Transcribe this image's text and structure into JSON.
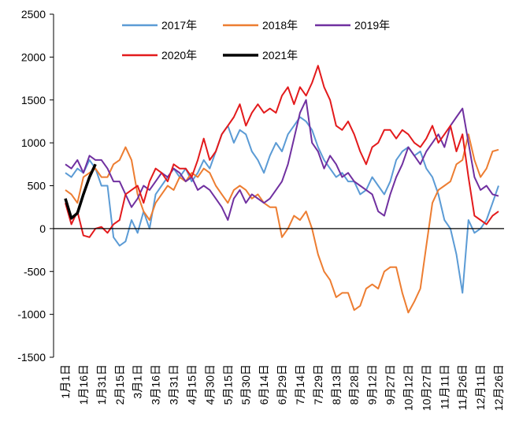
{
  "chart_data": {
    "type": "line",
    "categories": [
      "1月1日",
      null,
      null,
      "1月16日",
      null,
      null,
      "1月31日",
      null,
      null,
      "2月15日",
      null,
      null,
      "3月1日",
      null,
      null,
      "3月16日",
      null,
      null,
      "3月31日",
      null,
      null,
      "4月15日",
      null,
      null,
      "4月30日",
      null,
      null,
      "5月15日",
      null,
      null,
      "5月30日",
      null,
      null,
      "6月14日",
      null,
      null,
      "6月29日",
      null,
      null,
      "7月14日",
      null,
      null,
      "7月29日",
      null,
      null,
      "8月13日",
      null,
      null,
      "8月28日",
      null,
      null,
      "9月12日",
      null,
      null,
      "9月27日",
      null,
      null,
      "10月12日",
      null,
      null,
      "10月27日",
      null,
      null,
      "11月11日",
      null,
      null,
      "11月26日",
      null,
      null,
      "12月11日",
      null,
      null,
      "12月26日"
    ],
    "series": [
      {
        "name": "2017年",
        "color": "#5b9bd5",
        "values": [
          650,
          600,
          700,
          650,
          800,
          700,
          500,
          500,
          -100,
          -200,
          -150,
          100,
          -50,
          200,
          0,
          400,
          500,
          600,
          700,
          600,
          700,
          550,
          650,
          800,
          700,
          900,
          1100,
          1200,
          1000,
          1150,
          1100,
          900,
          800,
          650,
          850,
          1000,
          900,
          1100,
          1200,
          1300,
          1250,
          1150,
          950,
          800,
          700,
          600,
          650,
          550,
          550,
          400,
          450,
          600,
          500,
          400,
          550,
          800,
          900,
          950,
          850,
          900,
          700,
          600,
          400,
          100,
          0,
          -300,
          -750,
          100,
          -50,
          0,
          100,
          300,
          500
        ]
      },
      {
        "name": "2018年",
        "color": "#ed7d31",
        "values": [
          450,
          400,
          300,
          600,
          650,
          700,
          600,
          600,
          750,
          800,
          950,
          800,
          400,
          200,
          100,
          300,
          400,
          500,
          450,
          600,
          550,
          650,
          600,
          700,
          650,
          500,
          400,
          300,
          450,
          500,
          450,
          350,
          400,
          300,
          250,
          250,
          -100,
          0,
          150,
          100,
          200,
          0,
          -300,
          -500,
          -600,
          -800,
          -750,
          -750,
          -950,
          -900,
          -700,
          -650,
          -700,
          -500,
          -450,
          -450,
          -750,
          -980,
          -850,
          -700,
          -200,
          300,
          450,
          500,
          550,
          750,
          800,
          1100,
          800,
          600,
          700,
          900,
          920
        ]
      },
      {
        "name": "2019年",
        "color": "#7030a0",
        "values": [
          750,
          700,
          800,
          650,
          850,
          800,
          800,
          700,
          550,
          550,
          400,
          250,
          350,
          500,
          450,
          550,
          650,
          600,
          700,
          650,
          550,
          600,
          450,
          500,
          450,
          350,
          250,
          100,
          350,
          450,
          300,
          400,
          350,
          300,
          350,
          450,
          550,
          750,
          1050,
          1350,
          1500,
          1000,
          900,
          700,
          850,
          750,
          600,
          650,
          550,
          500,
          450,
          400,
          200,
          150,
          400,
          600,
          750,
          950,
          850,
          750,
          900,
          1000,
          1100,
          950,
          1200,
          1300,
          1400,
          1000,
          600,
          450,
          500,
          400,
          380
        ]
      },
      {
        "name": "2020年",
        "color": "#e31a1c",
        "values": [
          300,
          50,
          200,
          -80,
          -100,
          0,
          20,
          -50,
          50,
          100,
          400,
          450,
          500,
          300,
          550,
          700,
          650,
          550,
          750,
          700,
          700,
          600,
          800,
          1050,
          800,
          900,
          1100,
          1200,
          1300,
          1450,
          1200,
          1350,
          1450,
          1350,
          1400,
          1350,
          1550,
          1650,
          1450,
          1650,
          1550,
          1700,
          1900,
          1650,
          1500,
          1200,
          1150,
          1250,
          1100,
          900,
          750,
          950,
          1000,
          1150,
          1150,
          1050,
          1150,
          1100,
          1000,
          950,
          1050,
          1200,
          1000,
          1100,
          1200,
          900,
          1100,
          600,
          150,
          100,
          50,
          150,
          200
        ]
      },
      {
        "name": "2021年",
        "color": "#000000",
        "values": [
          350,
          120,
          180,
          400,
          600,
          750,
          null,
          null,
          null,
          null,
          null,
          null,
          null,
          null,
          null,
          null,
          null,
          null,
          null,
          null,
          null,
          null,
          null,
          null,
          null,
          null,
          null,
          null,
          null,
          null,
          null,
          null,
          null,
          null,
          null,
          null,
          null,
          null,
          null,
          null,
          null,
          null,
          null,
          null,
          null,
          null,
          null,
          null,
          null,
          null,
          null,
          null,
          null,
          null,
          null,
          null,
          null,
          null,
          null,
          null,
          null,
          null,
          null,
          null,
          null,
          null,
          null,
          null,
          null,
          null,
          null,
          null,
          null
        ]
      }
    ],
    "ylim": [
      -1500,
      2500
    ],
    "yticks": [
      -1500,
      -1000,
      -500,
      0,
      500,
      1000,
      1500,
      2000,
      2500
    ]
  }
}
